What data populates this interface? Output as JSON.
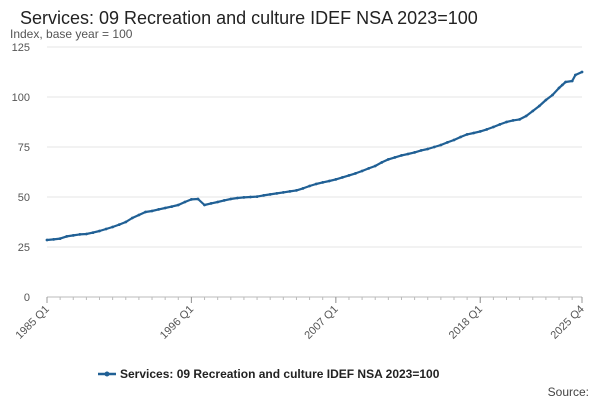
{
  "chart_data": {
    "type": "line",
    "title": "Services: 09 Recreation and culture IDEF NSA 2023=100",
    "ylabel": "Index, base year = 100",
    "xlabel": "",
    "ylim": [
      0,
      125
    ],
    "yticks": [
      0,
      25,
      50,
      75,
      100,
      125
    ],
    "xlim": [
      1985.0,
      2025.75
    ],
    "xticks": [
      {
        "label": "1985 Q1",
        "value": 1985.0
      },
      {
        "label": "1996 Q1",
        "value": 1996.0
      },
      {
        "label": "2007 Q1",
        "value": 2007.0
      },
      {
        "label": "2018 Q1",
        "value": 2018.0
      },
      {
        "label": "2025 Q4",
        "value": 2025.75
      }
    ],
    "grid": true,
    "legend_position": "bottom",
    "source_text": "Source:",
    "series": [
      {
        "name": "Services: 09 Recreation and culture IDEF NSA 2023=100",
        "color": "#206095",
        "points": [
          [
            1985.0,
            28.5
          ],
          [
            1985.5,
            28.8
          ],
          [
            1986.0,
            29.2
          ],
          [
            1986.5,
            30.3
          ],
          [
            1987.0,
            30.8
          ],
          [
            1987.5,
            31.3
          ],
          [
            1988.0,
            31.5
          ],
          [
            1988.5,
            32.2
          ],
          [
            1989.0,
            33.0
          ],
          [
            1989.5,
            34.0
          ],
          [
            1990.0,
            35.0
          ],
          [
            1990.5,
            36.2
          ],
          [
            1991.0,
            37.5
          ],
          [
            1991.5,
            39.5
          ],
          [
            1992.0,
            41.0
          ],
          [
            1992.5,
            42.5
          ],
          [
            1993.0,
            43.0
          ],
          [
            1993.5,
            43.8
          ],
          [
            1994.0,
            44.5
          ],
          [
            1994.5,
            45.2
          ],
          [
            1995.0,
            46.0
          ],
          [
            1995.5,
            47.5
          ],
          [
            1996.0,
            48.8
          ],
          [
            1996.5,
            49.0
          ],
          [
            1997.0,
            46.0
          ],
          [
            1997.5,
            46.8
          ],
          [
            1998.0,
            47.5
          ],
          [
            1998.5,
            48.3
          ],
          [
            1999.0,
            49.0
          ],
          [
            1999.5,
            49.5
          ],
          [
            2000.0,
            49.8
          ],
          [
            2000.5,
            50.0
          ],
          [
            2001.0,
            50.2
          ],
          [
            2001.5,
            50.8
          ],
          [
            2002.0,
            51.3
          ],
          [
            2002.5,
            51.8
          ],
          [
            2003.0,
            52.3
          ],
          [
            2003.5,
            52.8
          ],
          [
            2004.0,
            53.3
          ],
          [
            2004.5,
            54.3
          ],
          [
            2005.0,
            55.5
          ],
          [
            2005.5,
            56.5
          ],
          [
            2006.0,
            57.3
          ],
          [
            2006.5,
            58.0
          ],
          [
            2007.0,
            58.8
          ],
          [
            2007.5,
            59.8
          ],
          [
            2008.0,
            60.8
          ],
          [
            2008.5,
            61.8
          ],
          [
            2009.0,
            63.0
          ],
          [
            2009.5,
            64.3
          ],
          [
            2010.0,
            65.5
          ],
          [
            2010.5,
            67.3
          ],
          [
            2011.0,
            68.8
          ],
          [
            2011.5,
            69.8
          ],
          [
            2012.0,
            70.8
          ],
          [
            2012.5,
            71.5
          ],
          [
            2013.0,
            72.3
          ],
          [
            2013.5,
            73.3
          ],
          [
            2014.0,
            74.0
          ],
          [
            2014.5,
            75.0
          ],
          [
            2015.0,
            76.0
          ],
          [
            2015.5,
            77.3
          ],
          [
            2016.0,
            78.5
          ],
          [
            2016.5,
            80.0
          ],
          [
            2017.0,
            81.3
          ],
          [
            2017.5,
            82.0
          ],
          [
            2018.0,
            82.8
          ],
          [
            2018.5,
            83.8
          ],
          [
            2019.0,
            85.0
          ],
          [
            2019.5,
            86.3
          ],
          [
            2020.0,
            87.5
          ],
          [
            2020.5,
            88.3
          ],
          [
            2021.0,
            88.8
          ],
          [
            2021.5,
            90.5
          ],
          [
            2022.0,
            93.0
          ],
          [
            2022.5,
            95.5
          ],
          [
            2023.0,
            98.5
          ],
          [
            2023.5,
            101.0
          ],
          [
            2024.0,
            104.5
          ],
          [
            2024.25,
            106.0
          ],
          [
            2024.5,
            107.5
          ],
          [
            2025.0,
            108.0
          ],
          [
            2025.25,
            111.0
          ],
          [
            2025.75,
            112.5
          ]
        ]
      }
    ]
  }
}
